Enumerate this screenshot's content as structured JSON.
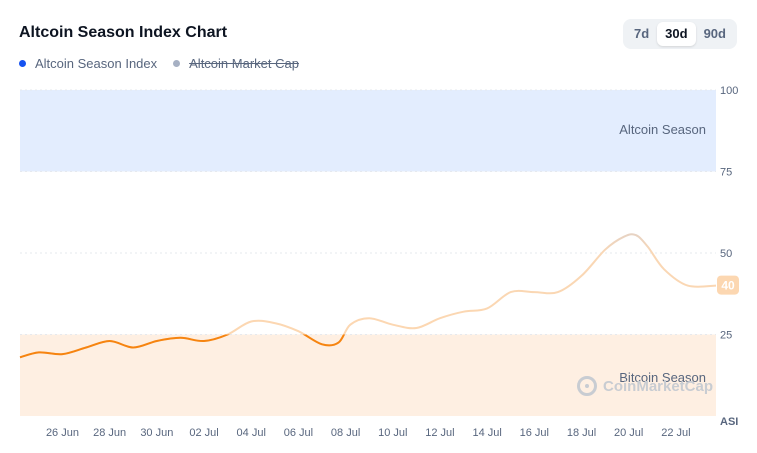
{
  "header": {
    "title": "Altcoin Season Index Chart"
  },
  "legend": [
    {
      "label": "Altcoin Season Index",
      "color": "#1652f0",
      "active": true
    },
    {
      "label": "Altcoin Market Cap",
      "color": "#a6b0c3",
      "active": false
    }
  ],
  "range_buttons": [
    {
      "label": "7d",
      "active": false
    },
    {
      "label": "30d",
      "active": true
    },
    {
      "label": "90d",
      "active": false
    }
  ],
  "watermark": {
    "text": "CoinMarketCap"
  },
  "chart_data": {
    "type": "line",
    "title": "Altcoin Season Index Chart",
    "ylabel": "ASI",
    "ylim": [
      0,
      100
    ],
    "yticks": [
      25,
      50,
      75,
      100
    ],
    "xlim": [
      -0.8,
      28.7
    ],
    "x_ticks": [
      {
        "value": 1,
        "label": "26 Jun"
      },
      {
        "value": 3,
        "label": "28 Jun"
      },
      {
        "value": 5,
        "label": "30 Jun"
      },
      {
        "value": 7,
        "label": "02 Jul"
      },
      {
        "value": 9,
        "label": "04 Jul"
      },
      {
        "value": 11,
        "label": "06 Jul"
      },
      {
        "value": 13,
        "label": "08 Jul"
      },
      {
        "value": 15,
        "label": "10 Jul"
      },
      {
        "value": 17,
        "label": "12 Jul"
      },
      {
        "value": 19,
        "label": "14 Jul"
      },
      {
        "value": 21,
        "label": "16 Jul"
      },
      {
        "value": 23,
        "label": "18 Jul"
      },
      {
        "value": 25,
        "label": "20 Jul"
      },
      {
        "value": 27,
        "label": "22 Jul"
      }
    ],
    "zones": [
      {
        "label": "Altcoin Season",
        "from": 75,
        "to": 100,
        "color": "#e3edfe"
      },
      {
        "label": "Bitcoin Season",
        "from": 0,
        "to": 25,
        "color": "#feefe2"
      }
    ],
    "current_value": 40,
    "series": [
      {
        "name": "Altcoin Season Index",
        "x": [
          -0.8,
          0,
          1,
          2,
          3,
          4,
          5,
          6,
          7,
          8,
          9,
          10,
          11,
          12,
          12.7,
          13.2,
          14,
          15,
          16,
          17,
          18,
          19,
          20,
          21,
          22,
          23,
          24,
          24.8,
          25.3,
          25.8,
          26.5,
          27.5,
          28.7
        ],
        "values": [
          18,
          19.5,
          19,
          21,
          23,
          21,
          23,
          24,
          23,
          25,
          29,
          28.5,
          26,
          22,
          22.5,
          28,
          30,
          28,
          27,
          30,
          32,
          33,
          38,
          38,
          38,
          43,
          51,
          55,
          55.5,
          52,
          45,
          40,
          40
        ]
      }
    ]
  }
}
